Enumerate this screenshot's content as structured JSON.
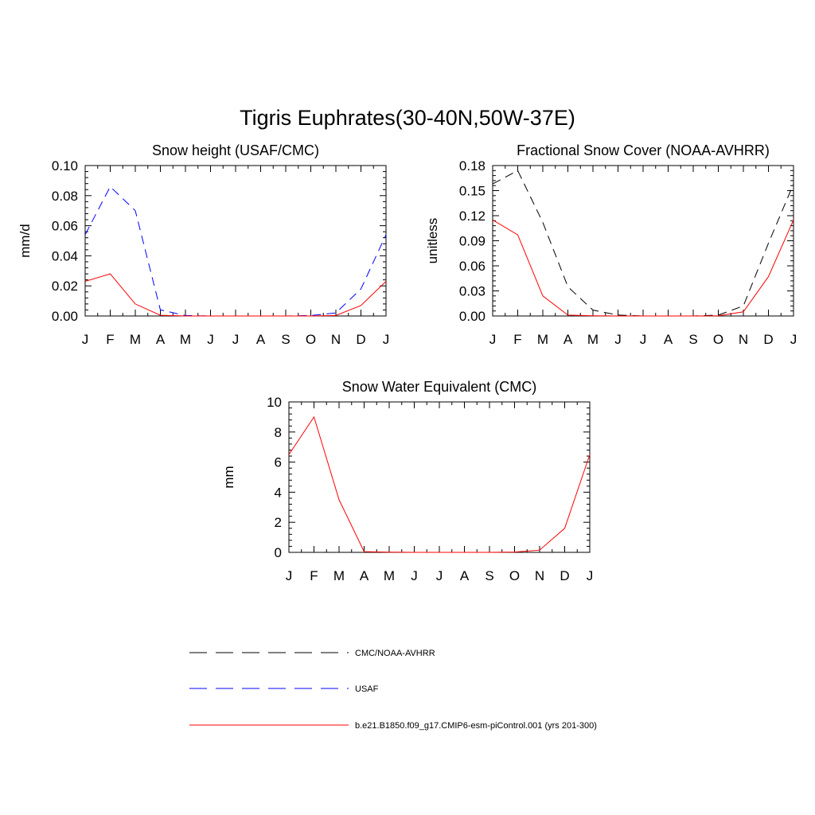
{
  "figure": {
    "title": "Tigris Euphrates(30-40N,50W-37E)"
  },
  "colors": {
    "obs": "#000000",
    "usaf": "#0000ff",
    "model": "#ff0000"
  },
  "legend": {
    "items": [
      {
        "key": "obs",
        "label": "CMC/NOAA-AVHRR",
        "style": "dashed",
        "color": "#000000"
      },
      {
        "key": "usaf",
        "label": "USAF",
        "style": "dashed",
        "color": "#0000ff"
      },
      {
        "key": "model",
        "label": "b.e21.B1850.f09_g17.CMIP6-esm-piControl.001 (yrs 201-300)",
        "style": "solid",
        "color": "#ff0000"
      }
    ]
  },
  "chart_data": [
    {
      "id": "snow-height",
      "type": "line",
      "title": "Snow height (USAF/CMC)",
      "xlabel": "",
      "ylabel": "mm/d",
      "categories": [
        "J",
        "F",
        "M",
        "A",
        "M",
        "J",
        "J",
        "A",
        "S",
        "O",
        "N",
        "D",
        "J"
      ],
      "ylim": [
        0,
        0.1
      ],
      "yticks": [
        0.0,
        0.02,
        0.04,
        0.06,
        0.08,
        0.1
      ],
      "ytick_labels": [
        "0.00",
        "0.02",
        "0.04",
        "0.06",
        "0.08",
        "0.10"
      ],
      "series": [
        {
          "name": "CMC/NOAA-AVHRR",
          "style": "dashed",
          "color": "#000000",
          "values": [
            0,
            0,
            0,
            0,
            0,
            0,
            0,
            0,
            0,
            0,
            0,
            0,
            0
          ]
        },
        {
          "name": "USAF",
          "style": "dashed",
          "color": "#0000ff",
          "values": [
            0.054,
            0.086,
            0.07,
            0.004,
            0.0003,
            0,
            0,
            0,
            0,
            0.0003,
            0.002,
            0.018,
            0.054
          ]
        },
        {
          "name": "b.e21.B1850.f09_g17.CMIP6-esm-piControl.001 (yrs 201-300)",
          "style": "solid",
          "color": "#ff0000",
          "values": [
            0.023,
            0.028,
            0.008,
            0.0005,
            0,
            0,
            0,
            0,
            0,
            0,
            0.0003,
            0.007,
            0.023
          ]
        }
      ]
    },
    {
      "id": "fractional-snow-cover",
      "type": "line",
      "title": "Fractional Snow Cover (NOAA-AVHRR)",
      "xlabel": "",
      "ylabel": "unitless",
      "categories": [
        "J",
        "F",
        "M",
        "A",
        "M",
        "J",
        "J",
        "A",
        "S",
        "O",
        "N",
        "D",
        "J"
      ],
      "ylim": [
        0,
        0.18
      ],
      "yticks": [
        0.0,
        0.03,
        0.06,
        0.09,
        0.12,
        0.15,
        0.18
      ],
      "ytick_labels": [
        "0.00",
        "0.03",
        "0.06",
        "0.09",
        "0.12",
        "0.15",
        "0.18"
      ],
      "series": [
        {
          "name": "CMC/NOAA-AVHRR",
          "style": "dashed",
          "color": "#000000",
          "values": [
            0.158,
            0.174,
            0.112,
            0.035,
            0.007,
            0.001,
            0,
            0,
            0,
            0.001,
            0.012,
            0.087,
            0.158
          ]
        },
        {
          "name": "b.e21.B1850.f09_g17.CMIP6-esm-piControl.001 (yrs 201-300)",
          "style": "solid",
          "color": "#ff0000",
          "values": [
            0.115,
            0.097,
            0.024,
            0.001,
            0.0003,
            0,
            0,
            0,
            0,
            0.0003,
            0.005,
            0.047,
            0.115
          ]
        }
      ]
    },
    {
      "id": "snow-water-equivalent",
      "type": "line",
      "title": "Snow Water Equivalent (CMC)",
      "xlabel": "",
      "ylabel": "mm",
      "categories": [
        "J",
        "F",
        "M",
        "A",
        "M",
        "J",
        "J",
        "A",
        "S",
        "O",
        "N",
        "D",
        "J"
      ],
      "ylim": [
        0,
        10
      ],
      "yticks": [
        0,
        2,
        4,
        6,
        8,
        10
      ],
      "ytick_labels": [
        "0",
        "2",
        "4",
        "6",
        "8",
        "10"
      ],
      "series": [
        {
          "name": "CMC/NOAA-AVHRR",
          "style": "dashed",
          "color": "#000000",
          "values": [
            0,
            0,
            0,
            0,
            0,
            0,
            0,
            0,
            0,
            0,
            0,
            0,
            0
          ]
        },
        {
          "name": "b.e21.B1850.f09_g17.CMIP6-esm-piControl.001 (yrs 201-300)",
          "style": "solid",
          "color": "#ff0000",
          "values": [
            6.5,
            9.0,
            3.5,
            0.05,
            0.01,
            0,
            0,
            0,
            0,
            0.02,
            0.15,
            1.6,
            6.5
          ]
        }
      ]
    }
  ]
}
